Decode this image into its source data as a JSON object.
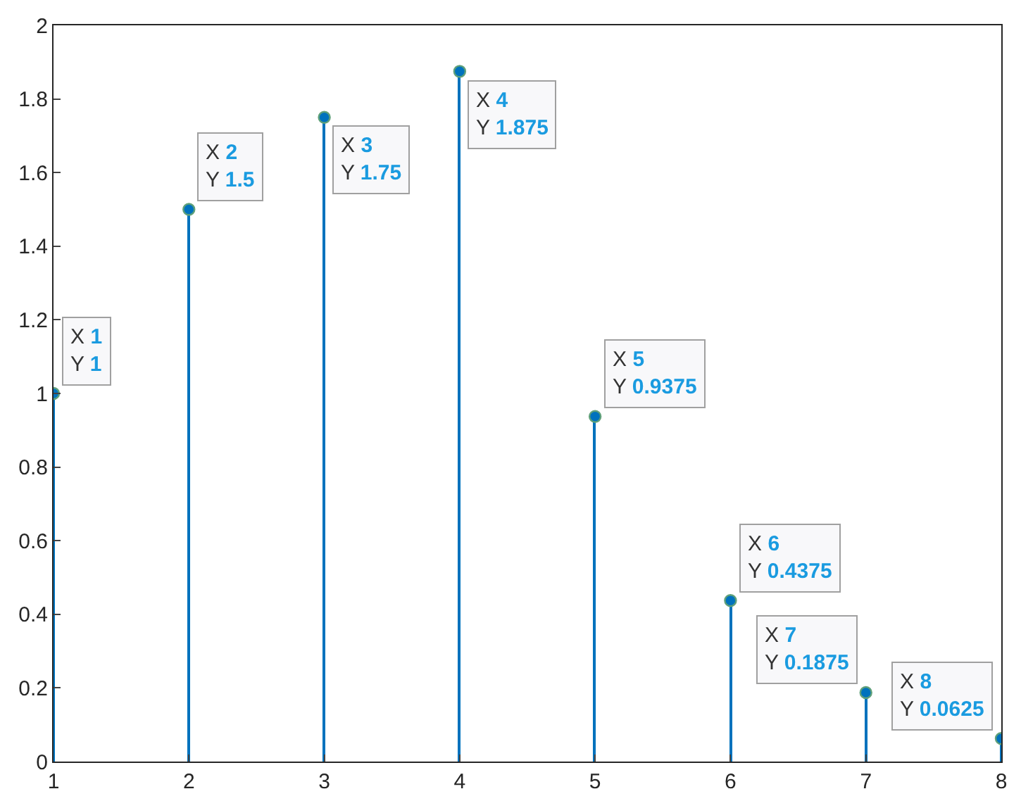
{
  "chart_data": {
    "type": "lollipop",
    "x": [
      1,
      2,
      3,
      4,
      5,
      6,
      7,
      8
    ],
    "values": [
      1,
      1.5,
      1.75,
      1.875,
      0.9375,
      0.4375,
      0.1875,
      0.0625
    ],
    "color": "#0072bd",
    "marker": "circle",
    "xlim": [
      1,
      8
    ],
    "xticks": [
      1,
      2,
      3,
      4,
      5,
      6,
      7,
      8
    ],
    "ylim": [
      0,
      2
    ],
    "yticks": [
      0,
      0.2,
      0.4,
      0.6,
      0.8,
      1,
      1.2,
      1.4,
      1.6,
      1.8,
      2
    ],
    "annotations": [
      {
        "text": "X 1\nY 1",
        "x": 1,
        "y": 1
      },
      {
        "text": "X 2\nY 1.5",
        "x": 2,
        "y": 1.5
      },
      {
        "text": "X 3\nY 1.75",
        "x": 3,
        "y": 1.75
      },
      {
        "text": "X 4\nY 1.875",
        "x": 4,
        "y": 1.875
      },
      {
        "text": "X 5\nY 0.9375",
        "x": 5,
        "y": 0.9375
      },
      {
        "text": "X 6\nY 0.4375",
        "x": 6,
        "y": 0.4375
      },
      {
        "text": "X 7\nY 0.1875",
        "x": 7,
        "y": 0.1875
      },
      {
        "text": "X 8\nY 0.0625",
        "x": 8,
        "y": 0.0625
      }
    ]
  }
}
